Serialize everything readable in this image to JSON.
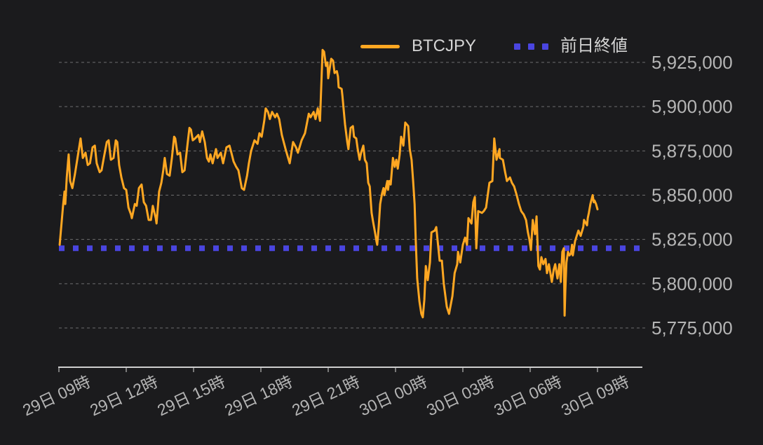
{
  "chart": {
    "legend": [
      {
        "label": "BTCJPY",
        "type": "line",
        "color": "#FFA722"
      },
      {
        "label": "前日終値",
        "type": "dotted",
        "color": "#4A45E0"
      }
    ],
    "colors": {
      "background": "#1b1b1d",
      "price_line": "#FFA722",
      "prev_close_line": "#4A45E0",
      "grid": "#9a9a9a",
      "axis": "#cfcfcf",
      "tick_label": "#b5b5b5"
    }
  },
  "chart_data": {
    "type": "line",
    "title": "",
    "xlabel": "",
    "ylabel": "",
    "x_unit": "minutes since 29日 09:00",
    "y_unit": "JPY",
    "grid": true,
    "legend_position": "top",
    "x_ticks": [
      {
        "m": 0,
        "label": "29日 09時"
      },
      {
        "m": 180,
        "label": "29日 12時"
      },
      {
        "m": 360,
        "label": "29日 15時"
      },
      {
        "m": 540,
        "label": "29日 18時"
      },
      {
        "m": 720,
        "label": "29日 21時"
      },
      {
        "m": 900,
        "label": "30日 00時"
      },
      {
        "m": 1080,
        "label": "30日 03時"
      },
      {
        "m": 1260,
        "label": "30日 06時"
      },
      {
        "m": 1440,
        "label": "30日 09時"
      }
    ],
    "y_ticks": [
      {
        "value": 5925000,
        "label": "5,925,000"
      },
      {
        "value": 5900000,
        "label": "5,900,000"
      },
      {
        "value": 5875000,
        "label": "5,875,000"
      },
      {
        "value": 5850000,
        "label": "5,850,000"
      },
      {
        "value": 5825000,
        "label": "5,825,000"
      },
      {
        "value": 5800000,
        "label": "5,800,000"
      },
      {
        "value": 5775000,
        "label": "5,775,000"
      }
    ],
    "ylim": [
      5753000,
      5948000
    ],
    "xlim_minutes": [
      0,
      1560
    ],
    "reference_lines": [
      {
        "name": "前日終値",
        "value": 5820000,
        "style": "dotted",
        "color": "#4A45E0"
      }
    ],
    "series": [
      {
        "name": "BTCJPY",
        "color": "#FFA722",
        "points": [
          [
            2,
            5822000
          ],
          [
            11,
            5844000
          ],
          [
            15,
            5852000
          ],
          [
            17,
            5845000
          ],
          [
            21,
            5860000
          ],
          [
            26,
            5873000
          ],
          [
            30,
            5858000
          ],
          [
            36,
            5854000
          ],
          [
            43,
            5862000
          ],
          [
            49,
            5870000
          ],
          [
            58,
            5882000
          ],
          [
            64,
            5871000
          ],
          [
            71,
            5874000
          ],
          [
            77,
            5867000
          ],
          [
            83,
            5868000
          ],
          [
            90,
            5877000
          ],
          [
            96,
            5878000
          ],
          [
            101,
            5868000
          ],
          [
            109,
            5863000
          ],
          [
            114,
            5864000
          ],
          [
            120,
            5871000
          ],
          [
            128,
            5880000
          ],
          [
            133,
            5881000
          ],
          [
            139,
            5870000
          ],
          [
            146,
            5871000
          ],
          [
            152,
            5881000
          ],
          [
            156,
            5880000
          ],
          [
            161,
            5867000
          ],
          [
            167,
            5860000
          ],
          [
            174,
            5854000
          ],
          [
            180,
            5853000
          ],
          [
            186,
            5843000
          ],
          [
            193,
            5839000
          ],
          [
            195,
            5837000
          ],
          [
            203,
            5845000
          ],
          [
            208,
            5844000
          ],
          [
            214,
            5854000
          ],
          [
            221,
            5856000
          ],
          [
            227,
            5846000
          ],
          [
            233,
            5844000
          ],
          [
            240,
            5836000
          ],
          [
            246,
            5836000
          ],
          [
            251,
            5844000
          ],
          [
            259,
            5837000
          ],
          [
            261,
            5834000
          ],
          [
            268,
            5852000
          ],
          [
            274,
            5857000
          ],
          [
            279,
            5864000
          ],
          [
            283,
            5871000
          ],
          [
            289,
            5862000
          ],
          [
            296,
            5861000
          ],
          [
            302,
            5871000
          ],
          [
            308,
            5883000
          ],
          [
            311,
            5882000
          ],
          [
            317,
            5873000
          ],
          [
            324,
            5874000
          ],
          [
            330,
            5863000
          ],
          [
            336,
            5864000
          ],
          [
            343,
            5877000
          ],
          [
            349,
            5888000
          ],
          [
            353,
            5887000
          ],
          [
            358,
            5881000
          ],
          [
            364,
            5882000
          ],
          [
            373,
            5884000
          ],
          [
            377,
            5880000
          ],
          [
            383,
            5886000
          ],
          [
            390,
            5880000
          ],
          [
            396,
            5871000
          ],
          [
            401,
            5869000
          ],
          [
            405,
            5873000
          ],
          [
            411,
            5868000
          ],
          [
            420,
            5876000
          ],
          [
            424,
            5871000
          ],
          [
            433,
            5874000
          ],
          [
            439,
            5868000
          ],
          [
            448,
            5877000
          ],
          [
            456,
            5878000
          ],
          [
            461,
            5874000
          ],
          [
            467,
            5869000
          ],
          [
            474,
            5866000
          ],
          [
            480,
            5864000
          ],
          [
            489,
            5854000
          ],
          [
            495,
            5853000
          ],
          [
            503,
            5861000
          ],
          [
            508,
            5868000
          ],
          [
            514,
            5875000
          ],
          [
            523,
            5881000
          ],
          [
            531,
            5879000
          ],
          [
            536,
            5885000
          ],
          [
            542,
            5883000
          ],
          [
            549,
            5892000
          ],
          [
            553,
            5899000
          ],
          [
            559,
            5897000
          ],
          [
            564,
            5893000
          ],
          [
            570,
            5897000
          ],
          [
            578,
            5894000
          ],
          [
            583,
            5896000
          ],
          [
            589,
            5893000
          ],
          [
            596,
            5884000
          ],
          [
            606,
            5876000
          ],
          [
            617,
            5868000
          ],
          [
            626,
            5880000
          ],
          [
            634,
            5877000
          ],
          [
            639,
            5874000
          ],
          [
            649,
            5881000
          ],
          [
            658,
            5885000
          ],
          [
            668,
            5896000
          ],
          [
            673,
            5894000
          ],
          [
            681,
            5897000
          ],
          [
            686,
            5893000
          ],
          [
            692,
            5899000
          ],
          [
            698,
            5892000
          ],
          [
            705,
            5932000
          ],
          [
            709,
            5931000
          ],
          [
            714,
            5923000
          ],
          [
            718,
            5925000
          ],
          [
            720,
            5916000
          ],
          [
            728,
            5927000
          ],
          [
            733,
            5926000
          ],
          [
            737,
            5919000
          ],
          [
            743,
            5920000
          ],
          [
            746,
            5917000
          ],
          [
            748,
            5911000
          ],
          [
            756,
            5910000
          ],
          [
            758,
            5906000
          ],
          [
            761,
            5899000
          ],
          [
            765,
            5890000
          ],
          [
            771,
            5880000
          ],
          [
            774,
            5876000
          ],
          [
            780,
            5888000
          ],
          [
            786,
            5889000
          ],
          [
            789,
            5883000
          ],
          [
            795,
            5882000
          ],
          [
            799,
            5876000
          ],
          [
            804,
            5870000
          ],
          [
            808,
            5874000
          ],
          [
            814,
            5878000
          ],
          [
            818,
            5870000
          ],
          [
            823,
            5868000
          ],
          [
            827,
            5857000
          ],
          [
            831,
            5855000
          ],
          [
            836,
            5840000
          ],
          [
            840,
            5835000
          ],
          [
            846,
            5828000
          ],
          [
            849,
            5824000
          ],
          [
            851,
            5822000
          ],
          [
            855,
            5832000
          ],
          [
            859,
            5845000
          ],
          [
            864,
            5851000
          ],
          [
            868,
            5854000
          ],
          [
            870,
            5850000
          ],
          [
            878,
            5858000
          ],
          [
            880,
            5853000
          ],
          [
            883,
            5858000
          ],
          [
            887,
            5856000
          ],
          [
            893,
            5871000
          ],
          [
            898,
            5866000
          ],
          [
            902,
            5870000
          ],
          [
            906,
            5865000
          ],
          [
            911,
            5873000
          ],
          [
            915,
            5883000
          ],
          [
            921,
            5878000
          ],
          [
            926,
            5891000
          ],
          [
            934,
            5889000
          ],
          [
            938,
            5876000
          ],
          [
            943,
            5870000
          ],
          [
            947,
            5858000
          ],
          [
            951,
            5845000
          ],
          [
            954,
            5825000
          ],
          [
            958,
            5803000
          ],
          [
            964,
            5790000
          ],
          [
            969,
            5783000
          ],
          [
            973,
            5781000
          ],
          [
            977,
            5791000
          ],
          [
            981,
            5810000
          ],
          [
            986,
            5802000
          ],
          [
            992,
            5812000
          ],
          [
            996,
            5829000
          ],
          [
            1005,
            5830000
          ],
          [
            1009,
            5832000
          ],
          [
            1018,
            5813000
          ],
          [
            1024,
            5813000
          ],
          [
            1029,
            5800000
          ],
          [
            1037,
            5787000
          ],
          [
            1043,
            5783000
          ],
          [
            1052,
            5793000
          ],
          [
            1058,
            5806000
          ],
          [
            1065,
            5811000
          ],
          [
            1067,
            5818000
          ],
          [
            1073,
            5812000
          ],
          [
            1080,
            5822000
          ],
          [
            1086,
            5826000
          ],
          [
            1091,
            5822000
          ],
          [
            1095,
            5837000
          ],
          [
            1103,
            5834000
          ],
          [
            1108,
            5846000
          ],
          [
            1112,
            5849000
          ],
          [
            1116,
            5820000
          ],
          [
            1121,
            5841000
          ],
          [
            1131,
            5840000
          ],
          [
            1136,
            5841000
          ],
          [
            1142,
            5843000
          ],
          [
            1151,
            5857000
          ],
          [
            1159,
            5858000
          ],
          [
            1164,
            5882000
          ],
          [
            1170,
            5870000
          ],
          [
            1178,
            5876000
          ],
          [
            1179,
            5871000
          ],
          [
            1187,
            5870000
          ],
          [
            1193,
            5863000
          ],
          [
            1198,
            5858000
          ],
          [
            1206,
            5860000
          ],
          [
            1211,
            5857000
          ],
          [
            1217,
            5855000
          ],
          [
            1224,
            5850000
          ],
          [
            1230,
            5845000
          ],
          [
            1236,
            5841000
          ],
          [
            1243,
            5839000
          ],
          [
            1249,
            5836000
          ],
          [
            1254,
            5829000
          ],
          [
            1258,
            5825000
          ],
          [
            1262,
            5819000
          ],
          [
            1267,
            5836000
          ],
          [
            1273,
            5828000
          ],
          [
            1277,
            5838000
          ],
          [
            1282,
            5810000
          ],
          [
            1286,
            5808000
          ],
          [
            1290,
            5815000
          ],
          [
            1295,
            5811000
          ],
          [
            1301,
            5814000
          ],
          [
            1305,
            5806000
          ],
          [
            1310,
            5811000
          ],
          [
            1318,
            5801000
          ],
          [
            1323,
            5808000
          ],
          [
            1327,
            5811000
          ],
          [
            1333,
            5803000
          ],
          [
            1338,
            5811000
          ],
          [
            1342,
            5801000
          ],
          [
            1346,
            5818000
          ],
          [
            1350,
            5820000
          ],
          [
            1352,
            5782000
          ],
          [
            1354,
            5796000
          ],
          [
            1357,
            5812000
          ],
          [
            1361,
            5818000
          ],
          [
            1365,
            5816000
          ],
          [
            1369,
            5817000
          ],
          [
            1372,
            5822000
          ],
          [
            1374,
            5816000
          ],
          [
            1380,
            5824000
          ],
          [
            1383,
            5826000
          ],
          [
            1389,
            5830000
          ],
          [
            1395,
            5827000
          ],
          [
            1402,
            5832000
          ],
          [
            1404,
            5836000
          ],
          [
            1412,
            5833000
          ],
          [
            1414,
            5837000
          ],
          [
            1417,
            5840000
          ],
          [
            1421,
            5845000
          ],
          [
            1427,
            5850000
          ],
          [
            1430,
            5846000
          ],
          [
            1432,
            5847000
          ],
          [
            1436,
            5845000
          ],
          [
            1440,
            5842000
          ]
        ]
      }
    ]
  }
}
